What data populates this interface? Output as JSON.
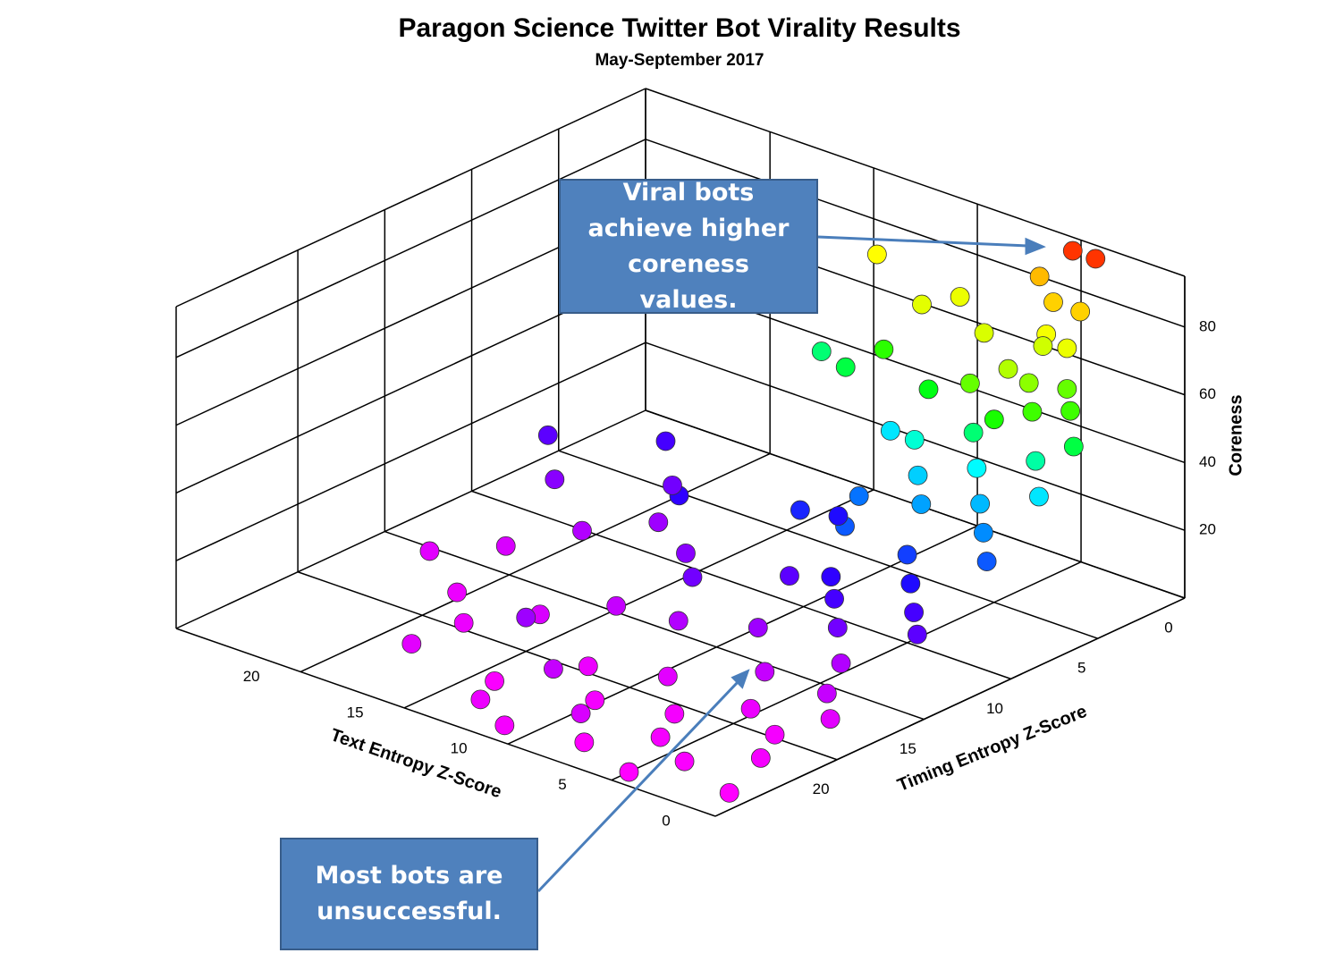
{
  "chart_data": {
    "type": "scatter3d",
    "title": "Paragon Science Twitter Bot Virality Results",
    "subtitle": "May-September 2017",
    "xlabel": "Text Entropy Z-Score",
    "ylabel": "Timing Entropy Z-Score",
    "zlabel": "Coreness",
    "xlim": [
      0,
      26
    ],
    "ylim": [
      0,
      27
    ],
    "zlim": [
      0,
      95
    ],
    "xticks": [
      0,
      5,
      10,
      15,
      20
    ],
    "yticks": [
      0,
      5,
      10,
      15,
      20
    ],
    "zticks": [
      20,
      40,
      60,
      80
    ],
    "grid": true,
    "colormap": [
      "#ff00ff",
      "#9900ff",
      "#2200ff",
      "#0088ff",
      "#00ffff",
      "#00ff00",
      "#ccff00",
      "#ffff00",
      "#ff8800",
      "#ff0000"
    ],
    "x": [
      5.4,
      4.3,
      7,
      5.5,
      4.2,
      5,
      4,
      14,
      10,
      11,
      8,
      6,
      5,
      4,
      6,
      3,
      7,
      5,
      4,
      12,
      9,
      6,
      3,
      2,
      8,
      5,
      10,
      7,
      4,
      2,
      6,
      3,
      9,
      8,
      5,
      2,
      11,
      4,
      7,
      13,
      15,
      10,
      6,
      3,
      9,
      12,
      5,
      2,
      16,
      14,
      18,
      20,
      17,
      8,
      4,
      11,
      6,
      3,
      14,
      19,
      22,
      24,
      21,
      16,
      9,
      5,
      2,
      12,
      7,
      3,
      18,
      10,
      6,
      14,
      2,
      4,
      20,
      23,
      8,
      1,
      12,
      15,
      9,
      18,
      13,
      5,
      11
    ],
    "y": [
      0,
      0,
      0,
      1,
      1,
      2,
      2,
      1,
      1,
      2,
      2,
      3,
      3,
      2,
      1,
      3,
      4,
      5,
      4,
      3,
      4,
      5,
      5,
      4,
      6,
      6,
      5,
      7,
      7,
      6,
      8,
      8,
      8,
      10,
      10,
      9,
      9,
      11,
      12,
      4,
      3,
      8,
      13,
      12,
      12,
      14,
      14,
      13,
      10,
      12,
      8,
      6,
      10,
      15,
      15,
      16,
      17,
      17,
      16,
      12,
      10,
      8,
      14,
      18,
      19,
      19,
      18,
      20,
      21,
      20,
      20,
      22,
      23,
      23,
      22,
      24,
      18,
      16,
      25,
      25,
      22,
      20,
      24,
      23,
      25,
      26,
      26
    ],
    "z": [
      91,
      91,
      80,
      78,
      78,
      72,
      70,
      74,
      70,
      68,
      66,
      62,
      60,
      58,
      64,
      56,
      58,
      54,
      56,
      55,
      52,
      48,
      46,
      50,
      44,
      42,
      40,
      38,
      36,
      40,
      34,
      32,
      30,
      28,
      26,
      28,
      24,
      22,
      20,
      50,
      48,
      22,
      18,
      18,
      16,
      14,
      14,
      16,
      20,
      12,
      14,
      18,
      10,
      10,
      8,
      8,
      6,
      6,
      6,
      8,
      12,
      16,
      4,
      4,
      3,
      2,
      3,
      2,
      1,
      1,
      2,
      1,
      1,
      0.5,
      1,
      0.5,
      2,
      3,
      0,
      0,
      6,
      10,
      4,
      3,
      2,
      0,
      1
    ]
  }
}
